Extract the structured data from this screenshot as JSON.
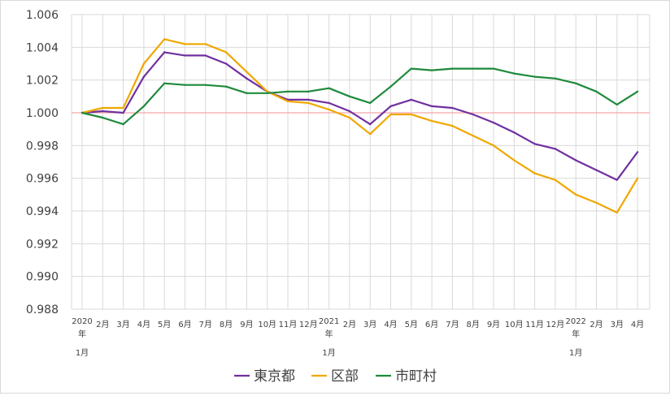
{
  "chart_data": {
    "type": "line",
    "title": "",
    "xlabel": "",
    "ylabel": "",
    "ylim": [
      0.988,
      1.006
    ],
    "y_ticks": [
      "0.988",
      "0.990",
      "0.992",
      "0.994",
      "0.996",
      "0.998",
      "1.000",
      "1.002",
      "1.004",
      "1.006"
    ],
    "x_tick_labels": [
      [
        "2020",
        "年",
        "1月"
      ],
      [
        "2月"
      ],
      [
        "3月"
      ],
      [
        "4月"
      ],
      [
        "5月"
      ],
      [
        "6月"
      ],
      [
        "7月"
      ],
      [
        "8月"
      ],
      [
        "9月"
      ],
      [
        "10月"
      ],
      [
        "11月"
      ],
      [
        "12月"
      ],
      [
        "2021",
        "年",
        "1月"
      ],
      [
        "2月"
      ],
      [
        "3月"
      ],
      [
        "4月"
      ],
      [
        "5月"
      ],
      [
        "6月"
      ],
      [
        "7月"
      ],
      [
        "8月"
      ],
      [
        "9月"
      ],
      [
        "10月"
      ],
      [
        "11月"
      ],
      [
        "12月"
      ],
      [
        "2022",
        "年",
        "1月"
      ],
      [
        "2月"
      ],
      [
        "3月"
      ],
      [
        "4月"
      ]
    ],
    "reference_line": 1.0,
    "reference_color": "#f4a6a6",
    "grid": true,
    "legend_position": "bottom",
    "series": [
      {
        "name": "東京都",
        "color": "#7030a0",
        "values": [
          1.0,
          1.0001,
          1.0,
          1.0022,
          1.0037,
          1.0035,
          1.0035,
          1.003,
          1.0021,
          1.0013,
          1.0008,
          1.0008,
          1.0006,
          1.0001,
          0.9993,
          1.0004,
          1.0008,
          1.0004,
          1.0003,
          0.9999,
          0.9994,
          0.9988,
          0.9981,
          0.9978,
          0.9971,
          0.9965,
          0.9959,
          0.9976
        ]
      },
      {
        "name": "区部",
        "color": "#f0a800",
        "values": [
          1.0,
          1.0003,
          1.0003,
          1.003,
          1.0045,
          1.0042,
          1.0042,
          1.0037,
          1.0025,
          1.0013,
          1.0007,
          1.0006,
          1.0002,
          0.9997,
          0.9987,
          0.9999,
          0.9999,
          0.9995,
          0.9992,
          0.9986,
          0.998,
          0.9971,
          0.9963,
          0.9959,
          0.995,
          0.9945,
          0.9939,
          0.996
        ]
      },
      {
        "name": "市町村",
        "color": "#1e8a3c",
        "values": [
          1.0,
          0.9997,
          0.9993,
          1.0004,
          1.0018,
          1.0017,
          1.0017,
          1.0016,
          1.0012,
          1.0012,
          1.0013,
          1.0013,
          1.0015,
          1.001,
          1.0006,
          1.0016,
          1.0027,
          1.0026,
          1.0027,
          1.0027,
          1.0027,
          1.0024,
          1.0022,
          1.0021,
          1.0018,
          1.0013,
          1.0005,
          1.0013
        ]
      }
    ]
  }
}
